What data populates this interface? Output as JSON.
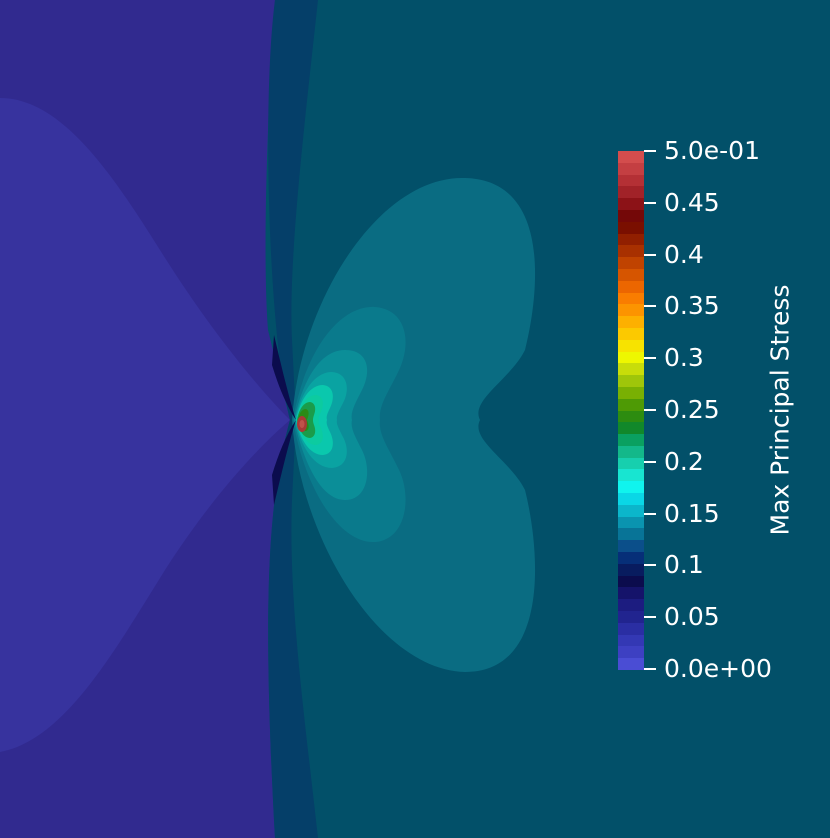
{
  "scalar_bar": {
    "title": "Max Principal Stress",
    "range": [
      0.0,
      0.5
    ],
    "tick_labels": [
      "5.0e-01",
      "0.45",
      "0.4",
      "0.35",
      "0.3",
      "0.25",
      "0.2",
      "0.15",
      "0.1",
      "0.05",
      "0.0e+00"
    ],
    "colors_top_to_bottom": [
      "#d34d4d",
      "#c43f42",
      "#b43035",
      "#a12228",
      "#8c1217",
      "#740808",
      "#7a0f00",
      "#911f00",
      "#a83000",
      "#c04300",
      "#d65500",
      "#ec6600",
      "#f97d00",
      "#fc9400",
      "#fdb000",
      "#fcc900",
      "#f7e300",
      "#eef700",
      "#c8dd0a",
      "#9fc60a",
      "#79b003",
      "#4e9a05",
      "#2d8c10",
      "#11882a",
      "#0aa060",
      "#13b88a",
      "#17cfae",
      "#18e5d1",
      "#10f4ee",
      "#0ad7e6",
      "#0bb6cb",
      "#0a94b0",
      "#087497",
      "#0b4f8a",
      "#062f78",
      "#081c5f",
      "#0b0c4d",
      "#15136a",
      "#1c1c80",
      "#21248f",
      "#2a2ea3",
      "#3338b4",
      "#3d40c2",
      "#4a4dd4"
    ]
  },
  "field_colors": {
    "background": "#025069",
    "left_region": "#312a8f",
    "left_inner": "#37339e",
    "crack_band": "#053f69",
    "lobe_1": "#0a6c82",
    "lobe_2": "#0a7a8c",
    "lobe_3": "#0b8e98",
    "lobe_4": "#0aa3a2",
    "lobe_5": "#09b6a6",
    "lobe_6": "#0ac8ad",
    "lobe_7": "#0ccba0",
    "lobe_8": "#1a9c4a",
    "lobe_9": "#2b8a16",
    "tip_core": "#a83a36",
    "tip_center": "#c0524a",
    "crack_dark": "#0b0c4d"
  }
}
